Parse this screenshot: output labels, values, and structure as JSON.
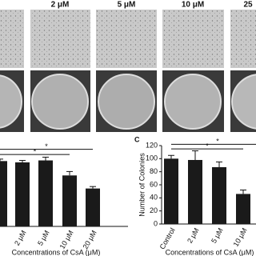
{
  "panel_labels": [
    "2 μM",
    "5 μM",
    "10 μM",
    "25"
  ],
  "chart_data": [
    {
      "type": "bar",
      "categories": [
        null,
        "2 μM",
        "5 μM",
        "10 μM",
        "20 μM"
      ],
      "values": [
        100,
        98,
        101,
        78,
        58
      ],
      "errors": [
        3,
        3,
        5,
        6,
        3
      ],
      "color": "#1a1a1a",
      "ylim": [
        0,
        120
      ],
      "x_label": "Concentrations of CsA (μM)",
      "annotations": [
        {
          "text": "*",
          "from": 0,
          "to": 4,
          "level": 118
        },
        {
          "text": "*",
          "from": 0,
          "to": 3,
          "level": 110
        }
      ]
    },
    {
      "type": "bar",
      "panel": "C",
      "categories": [
        "Control",
        "2 μM",
        "5 μM",
        "10 μM"
      ],
      "values": [
        100,
        98,
        87,
        46
      ],
      "errors": [
        5,
        14,
        8,
        6
      ],
      "color": "#1a1a1a",
      "ylim": [
        0,
        120
      ],
      "yticks": [
        0,
        20,
        40,
        60,
        80,
        100,
        120
      ],
      "y_label": "Number of Colonies",
      "x_label": "Concentrations of CsA (μM)",
      "annotations": [
        {
          "text": "*",
          "from": 0,
          "to": 4,
          "level": 122
        },
        {
          "text": "*",
          "from": 0,
          "to": 3,
          "level": 115
        }
      ]
    }
  ]
}
